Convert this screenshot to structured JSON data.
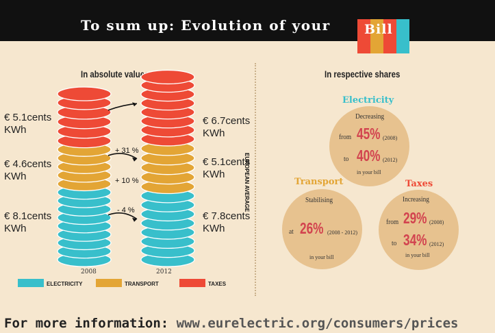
{
  "header": {
    "title": "To sum up: Evolution of your",
    "logo_text": "Bill"
  },
  "left_heading": "In absolute values",
  "right_heading": "In respective shares",
  "vertical_label": "EUROPEAN AVERAGE",
  "chart_data": {
    "type": "bar",
    "stacked": true,
    "categories": [
      "2008",
      "2012"
    ],
    "series": [
      {
        "name": "ELECTRICITY",
        "values": [
          8.1,
          7.8
        ],
        "labels": [
          "€ 8.1cents\nKWh",
          "€ 7.8cents\nKWh"
        ],
        "color": "#38bfcb"
      },
      {
        "name": "TRANSPORT",
        "values": [
          4.6,
          5.1
        ],
        "labels": [
          "€ 4.6cents\nKWh",
          "€ 5.1cents\nKWh"
        ],
        "color": "#e3a535"
      },
      {
        "name": "TAXES",
        "values": [
          5.1,
          6.7
        ],
        "labels": [
          "€ 5.1cents\nKWh",
          "€ 6.7cents\nKWh"
        ],
        "color": "#ee4a36"
      }
    ],
    "changes": [
      "- 4 %",
      "+ 10 %",
      "+ 31 %"
    ]
  },
  "shares": {
    "electricity": {
      "title": "Electricity",
      "status": "Decreasing",
      "from_word": "from",
      "from_value": "45%",
      "from_year": "(2008)",
      "to_word": "to",
      "to_value": "40%",
      "to_year": "(2012)",
      "suffix": "in your bill",
      "color": "#38bfcb"
    },
    "transport": {
      "title": "Transport",
      "status": "Stabilising",
      "at_word": "at",
      "value": "26%",
      "years": "(2008 - 2012)",
      "suffix": "in your bill",
      "color": "#e3a535"
    },
    "taxes": {
      "title": "Taxes",
      "status": "Increasing",
      "from_word": "from",
      "from_value": "29%",
      "from_year": "(2008)",
      "to_word": "to",
      "to_value": "34%",
      "to_year": "(2012)",
      "suffix": "in your bill",
      "color": "#ee4a36"
    }
  },
  "footer": {
    "label": "For more information:",
    "url": "www.eurelectric.org/consumers/prices"
  }
}
